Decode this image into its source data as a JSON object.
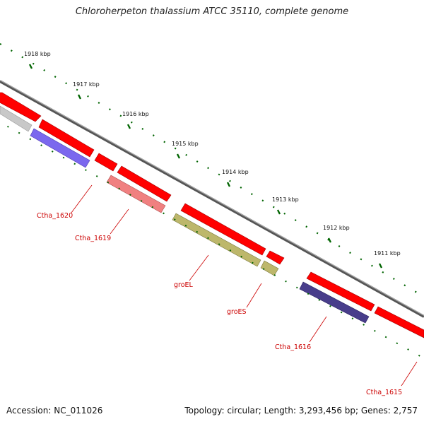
{
  "title": "Chloroherpeton thalassium ATCC 35110, complete genome",
  "footer": {
    "accession": "Accession: NC_011026",
    "stats": "Topology: circular; Length: 3,293,456 bp; Genes: 2,757"
  },
  "scale_labels": [
    "1918 kbp",
    "1917 kbp",
    "1916 kbp",
    "1915 kbp",
    "1914 kbp",
    "1913 kbp",
    "1912 kbp",
    "1911 kbp"
  ],
  "gene_labels": [
    "Ctha_1620",
    "Ctha_1619",
    "groEL",
    "groES",
    "Ctha_1616",
    "Ctha_1615"
  ],
  "colors": {
    "backbone": "#808080",
    "forward_gene": "#ff0000",
    "reverse_gene": "#7b68ee",
    "pink_gene": "#f08080",
    "olive_gene": "#bdb76b",
    "navy_gene": "#483d8b",
    "grey_gene": "#c8c8c8",
    "scale_tick": "#006400",
    "label_text": "#cc0000"
  }
}
